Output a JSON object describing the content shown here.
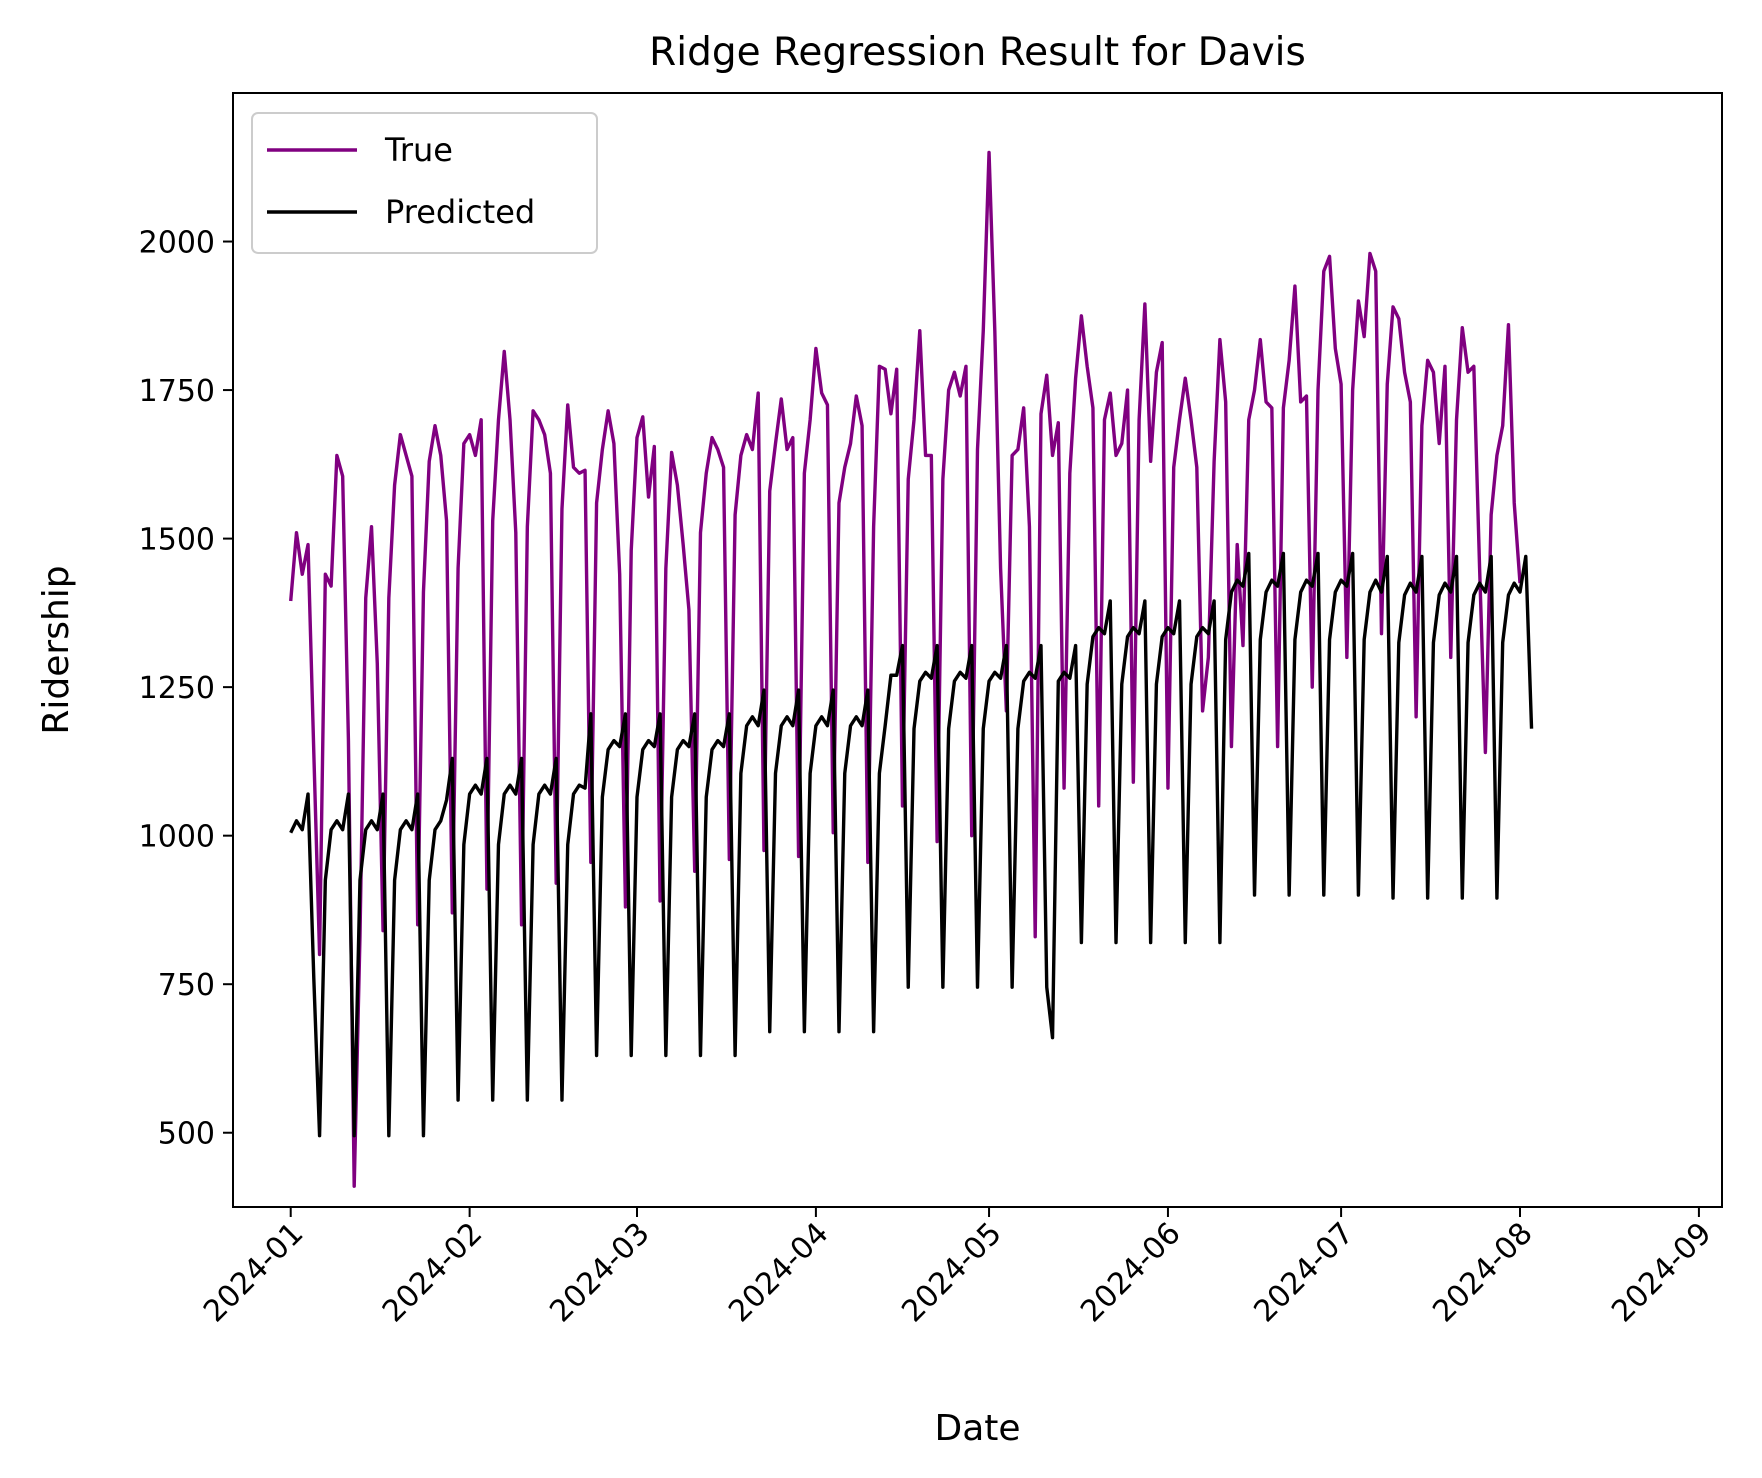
{
  "chart_data": {
    "type": "line",
    "title": "Ridge Regression Result for Davis",
    "xlabel": "Date",
    "ylabel": "Ridership",
    "x_start": "2024-01-01",
    "xlim": [
      "2023-12-22",
      "2024-09-05"
    ],
    "ylim": [
      375,
      2250
    ],
    "grid": false,
    "legend_position": "upper left",
    "x_ticks": [
      "2024-01",
      "2024-02",
      "2024-03",
      "2024-04",
      "2024-05",
      "2024-06",
      "2024-07",
      "2024-08",
      "2024-09"
    ],
    "y_ticks": [
      500,
      750,
      1000,
      1250,
      1500,
      1750,
      2000
    ],
    "series": [
      {
        "name": "True",
        "color": "#800080",
        "values": [
          1395,
          1510,
          1440,
          1490,
          1140,
          800,
          1440,
          1420,
          1640,
          1605,
          1160,
          410,
          830,
          1400,
          1520,
          1290,
          840,
          1400,
          1590,
          1675,
          1640,
          1605,
          850,
          1410,
          1630,
          1690,
          1640,
          1530,
          870,
          1450,
          1660,
          1675,
          1640,
          1700,
          910,
          1530,
          1700,
          1815,
          1700,
          1510,
          850,
          1520,
          1715,
          1700,
          1675,
          1610,
          920,
          1550,
          1725,
          1620,
          1610,
          1615,
          955,
          1560,
          1650,
          1715,
          1660,
          1440,
          880,
          1480,
          1670,
          1705,
          1570,
          1655,
          890,
          1450,
          1645,
          1590,
          1490,
          1380,
          940,
          1510,
          1610,
          1670,
          1650,
          1620,
          960,
          1540,
          1640,
          1675,
          1650,
          1745,
          975,
          1580,
          1660,
          1735,
          1650,
          1670,
          965,
          1610,
          1700,
          1820,
          1745,
          1725,
          1005,
          1560,
          1620,
          1660,
          1740,
          1690,
          955,
          1520,
          1790,
          1785,
          1710,
          1785,
          1050,
          1600,
          1700,
          1850,
          1640,
          1640,
          990,
          1600,
          1750,
          1780,
          1740,
          1790,
          1000,
          1650,
          1850,
          2150,
          1850,
          1450,
          1210,
          1640,
          1650,
          1720,
          1520,
          830,
          1710,
          1775,
          1640,
          1695,
          1080,
          1610,
          1770,
          1875,
          1790,
          1720,
          1050,
          1700,
          1745,
          1640,
          1660,
          1750,
          1090,
          1700,
          1895,
          1630,
          1780,
          1830,
          1080,
          1620,
          1700,
          1770,
          1700,
          1620,
          1210,
          1300,
          1630,
          1835,
          1730,
          1150,
          1490,
          1320,
          1700,
          1750,
          1835,
          1730,
          1720,
          1150,
          1720,
          1800,
          1925,
          1730,
          1740,
          1250,
          1750,
          1950,
          1975,
          1820,
          1760,
          1300,
          1750,
          1900,
          1840,
          1980,
          1950,
          1340,
          1760,
          1890,
          1870,
          1780,
          1730,
          1200,
          1690,
          1800,
          1780,
          1660,
          1790,
          1300,
          1700,
          1855,
          1780,
          1790,
          1450,
          1140,
          1540,
          1640,
          1690,
          1860,
          1560,
          1425
        ]
      },
      {
        "name": "Predicted",
        "color": "#000000",
        "values": [
          1005,
          1025,
          1010,
          1070,
          760,
          495,
          925,
          1010,
          1025,
          1010,
          1070,
          495,
          925,
          1010,
          1025,
          1010,
          1070,
          495,
          925,
          1010,
          1025,
          1010,
          1070,
          495,
          925,
          1010,
          1025,
          1060,
          1130,
          555,
          985,
          1070,
          1085,
          1070,
          1130,
          555,
          985,
          1070,
          1085,
          1070,
          1130,
          555,
          985,
          1070,
          1085,
          1070,
          1130,
          555,
          985,
          1070,
          1085,
          1080,
          1205,
          630,
          1065,
          1145,
          1160,
          1150,
          1205,
          630,
          1065,
          1145,
          1160,
          1150,
          1205,
          630,
          1065,
          1145,
          1160,
          1150,
          1205,
          630,
          1065,
          1145,
          1160,
          1150,
          1205,
          630,
          1105,
          1185,
          1200,
          1185,
          1245,
          670,
          1105,
          1185,
          1200,
          1185,
          1245,
          670,
          1105,
          1185,
          1200,
          1185,
          1245,
          670,
          1105,
          1185,
          1200,
          1185,
          1245,
          670,
          1105,
          1185,
          1270,
          1270,
          1320,
          745,
          1180,
          1260,
          1275,
          1265,
          1320,
          745,
          1180,
          1260,
          1275,
          1265,
          1320,
          745,
          1180,
          1260,
          1275,
          1265,
          1320,
          745,
          1180,
          1260,
          1275,
          1265,
          1320,
          745,
          660,
          1260,
          1275,
          1265,
          1320,
          820,
          1255,
          1335,
          1350,
          1340,
          1395,
          820,
          1255,
          1335,
          1350,
          1340,
          1395,
          820,
          1255,
          1335,
          1350,
          1340,
          1395,
          820,
          1255,
          1335,
          1350,
          1340,
          1395,
          820,
          1330,
          1410,
          1430,
          1420,
          1475,
          900,
          1330,
          1410,
          1430,
          1420,
          1475,
          900,
          1330,
          1410,
          1430,
          1420,
          1475,
          900,
          1330,
          1410,
          1430,
          1420,
          1475,
          900,
          1330,
          1410,
          1430,
          1410,
          1470,
          895,
          1325,
          1405,
          1425,
          1410,
          1470,
          895,
          1325,
          1405,
          1425,
          1410,
          1470,
          895,
          1325,
          1405,
          1425,
          1410,
          1470,
          895,
          1325,
          1405,
          1425,
          1410,
          1470,
          1180
        ]
      }
    ]
  }
}
